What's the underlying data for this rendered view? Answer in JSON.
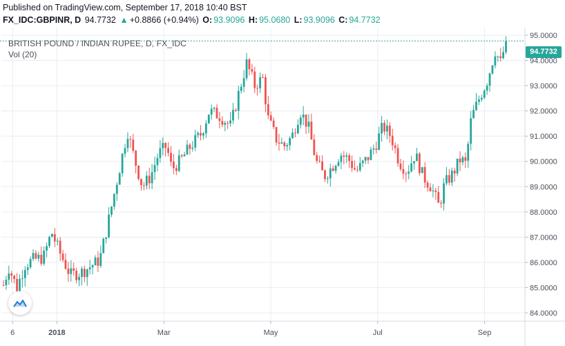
{
  "header": {
    "published": "Published on TradingView.com, September 17, 2018 10:40 BST",
    "symbol": "FX_IDC:GBPINR, D",
    "last": "94.7732",
    "change_arrow": "▲",
    "change": "+0.8866 (+0.94%)",
    "o_label": "O:",
    "o_value": "93.9096",
    "h_label": "H:",
    "h_value": "95.0680",
    "l_label": "L:",
    "l_value": "93.9096",
    "c_label": "C:",
    "c_value": "94.7732"
  },
  "legend": {
    "title": "BRITISH POUND / INDIAN RUPEE, D, FX_IDC",
    "volume": "Vol (20)"
  },
  "last_price_tag": "94.7732",
  "colors": {
    "up": "#26a69a",
    "down": "#ef5350",
    "grid": "#e9ecf2",
    "axis_text": "#4a4f5a",
    "last_line": "#26a69a"
  },
  "icons": {
    "logo": "tradingview-logo-icon"
  },
  "chart_data": {
    "type": "candlestick",
    "ylim": [
      83.7,
      95.3
    ],
    "y_ticks": [
      "84.0000",
      "85.0000",
      "86.0000",
      "87.0000",
      "88.0000",
      "89.0000",
      "90.0000",
      "91.0000",
      "92.0000",
      "93.0000",
      "94.0000",
      "95.0000"
    ],
    "x_ticks": [
      {
        "label": "6",
        "month_index": 0.17
      },
      {
        "label": "2018",
        "month_index": 1.0
      },
      {
        "label": "Mar",
        "month_index": 3.0
      },
      {
        "label": "May",
        "month_index": 5.0
      },
      {
        "label": "Jul",
        "month_index": 7.0
      },
      {
        "label": "Sep",
        "month_index": 9.0
      }
    ],
    "x_range_months": [
      0.0,
      9.6
    ],
    "grid": true,
    "last_value": 94.7732,
    "close_path": [
      [
        0.0,
        85.1
      ],
      [
        0.1,
        85.8
      ],
      [
        0.25,
        85.0
      ],
      [
        0.4,
        85.9
      ],
      [
        0.55,
        86.1
      ],
      [
        0.75,
        86.2
      ],
      [
        0.9,
        87.2
      ],
      [
        1.05,
        86.4
      ],
      [
        1.25,
        85.5
      ],
      [
        1.45,
        85.6
      ],
      [
        1.6,
        85.8
      ],
      [
        1.8,
        86.1
      ],
      [
        1.95,
        87.5
      ],
      [
        2.1,
        89.0
      ],
      [
        2.2,
        90.0
      ],
      [
        2.32,
        91.2
      ],
      [
        2.45,
        90.1
      ],
      [
        2.6,
        89.0
      ],
      [
        2.75,
        89.4
      ],
      [
        2.9,
        90.3
      ],
      [
        3.05,
        90.6
      ],
      [
        3.15,
        89.7
      ],
      [
        3.3,
        90.0
      ],
      [
        3.5,
        90.6
      ],
      [
        3.7,
        91.1
      ],
      [
        3.85,
        92.0
      ],
      [
        4.05,
        91.8
      ],
      [
        4.25,
        91.4
      ],
      [
        4.4,
        92.7
      ],
      [
        4.55,
        93.9
      ],
      [
        4.7,
        93.0
      ],
      [
        4.85,
        93.3
      ],
      [
        4.95,
        91.7
      ],
      [
        5.1,
        90.9
      ],
      [
        5.25,
        90.6
      ],
      [
        5.4,
        91.0
      ],
      [
        5.55,
        92.0
      ],
      [
        5.7,
        91.4
      ],
      [
        5.85,
        90.0
      ],
      [
        6.0,
        89.4
      ],
      [
        6.15,
        89.8
      ],
      [
        6.3,
        90.3
      ],
      [
        6.45,
        90.1
      ],
      [
        6.6,
        89.6
      ],
      [
        6.8,
        90.1
      ],
      [
        6.95,
        90.6
      ],
      [
        7.1,
        91.4
      ],
      [
        7.25,
        91.0
      ],
      [
        7.4,
        90.0
      ],
      [
        7.55,
        89.6
      ],
      [
        7.7,
        90.3
      ],
      [
        7.85,
        89.4
      ],
      [
        8.0,
        89.0
      ],
      [
        8.15,
        88.2
      ],
      [
        8.25,
        89.1
      ],
      [
        8.4,
        89.5
      ],
      [
        8.55,
        90.1
      ],
      [
        8.65,
        89.9
      ],
      [
        8.75,
        91.7
      ],
      [
        8.9,
        92.5
      ],
      [
        9.05,
        93.2
      ],
      [
        9.2,
        94.4
      ],
      [
        9.3,
        93.9
      ],
      [
        9.4,
        94.7732
      ]
    ]
  }
}
